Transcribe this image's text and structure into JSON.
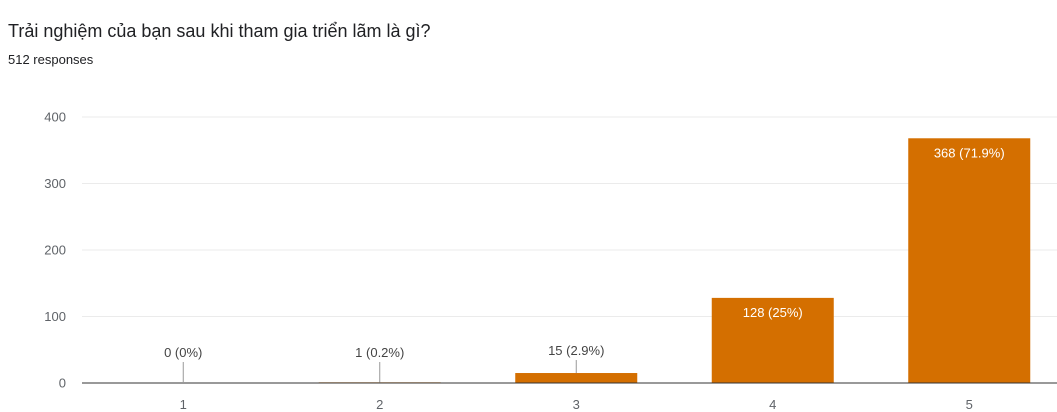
{
  "question": "Trải nghiệm của bạn sau khi tham gia triển lãm là gì?",
  "responses_label": "512 responses",
  "colors": {
    "bar": "#d46f00",
    "grid": "#ebebeb",
    "axis": "#333333",
    "label_outside": "#444444",
    "label_inside": "#ffffff"
  },
  "chart_data": {
    "type": "bar",
    "categories": [
      "1",
      "2",
      "3",
      "4",
      "5"
    ],
    "values": [
      0,
      1,
      15,
      128,
      368
    ],
    "data_labels": [
      "0 (0%)",
      "1 (0.2%)",
      "15 (2.9%)",
      "128 (25%)",
      "368 (71.9%)"
    ],
    "ylim": [
      0,
      400
    ],
    "yticks": [
      0,
      100,
      200,
      300,
      400
    ],
    "xlabel": "",
    "ylabel": "",
    "grid": true,
    "legend": "none"
  }
}
